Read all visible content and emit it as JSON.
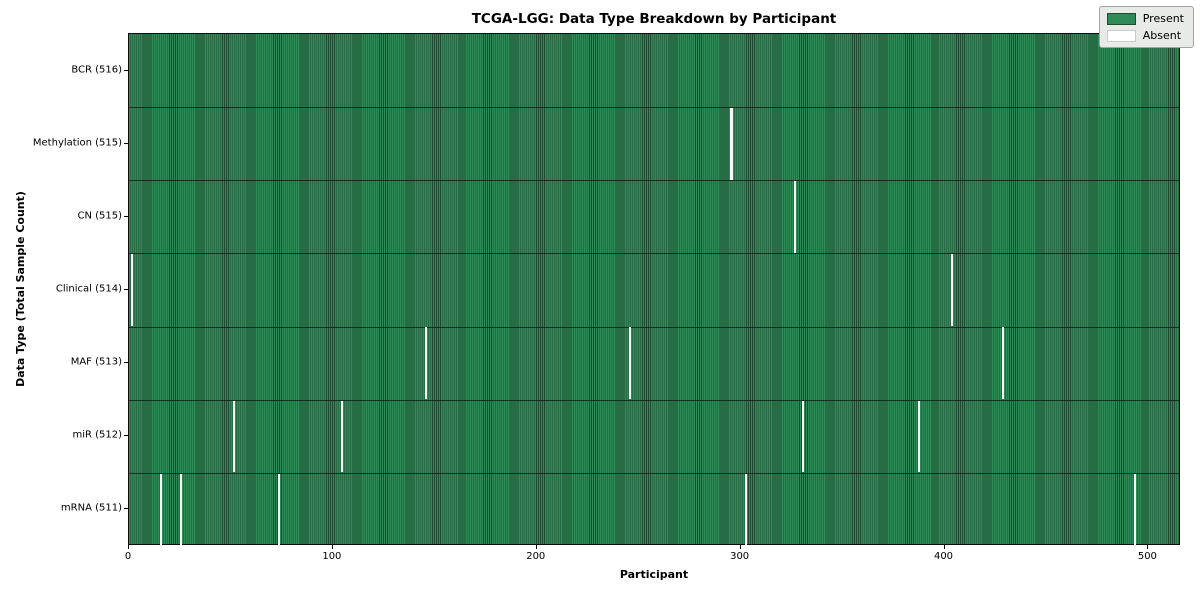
{
  "title": "TCGA-LGG: Data Type Breakdown by Participant",
  "legend": {
    "present_label": "Present",
    "absent_label": "Absent"
  },
  "colors": {
    "present": "#2e8b57",
    "present_edge": "#1d4c33",
    "absent": "#ffffff",
    "absent_edge": "#c8ccc8",
    "legend_bg": "#e7eae6"
  },
  "chart_data": {
    "type": "heatmap",
    "title": "TCGA-LGG: Data Type Breakdown by Participant",
    "xlabel": "Participant",
    "ylabel": "Data Type (Total Sample Count)",
    "x_ticks": [
      0,
      100,
      200,
      300,
      400,
      500
    ],
    "xlim": [
      0,
      516
    ],
    "n_participants": 516,
    "legend_entries": [
      "Present",
      "Absent"
    ],
    "legend_position": "upper right",
    "grid": false,
    "rows": [
      {
        "label": "BCR (516)",
        "data_type": "BCR",
        "present_count": 516,
        "absent_participants": []
      },
      {
        "label": "Methylation (515)",
        "data_type": "Methylation",
        "present_count": 515,
        "absent_participants": [
          295
        ]
      },
      {
        "label": "CN (515)",
        "data_type": "CN",
        "present_count": 515,
        "absent_participants": [
          326
        ]
      },
      {
        "label": "Clinical (514)",
        "data_type": "Clinical",
        "present_count": 514,
        "absent_participants": [
          1,
          403
        ]
      },
      {
        "label": "MAF (513)",
        "data_type": "MAF",
        "present_count": 513,
        "absent_participants": [
          145,
          245,
          428
        ]
      },
      {
        "label": "miR (512)",
        "data_type": "miR",
        "present_count": 512,
        "absent_participants": [
          51,
          104,
          330,
          387
        ]
      },
      {
        "label": "mRNA (511)",
        "data_type": "mRNA",
        "present_count": 511,
        "absent_participants": [
          15,
          25,
          73,
          302,
          493
        ]
      }
    ]
  }
}
